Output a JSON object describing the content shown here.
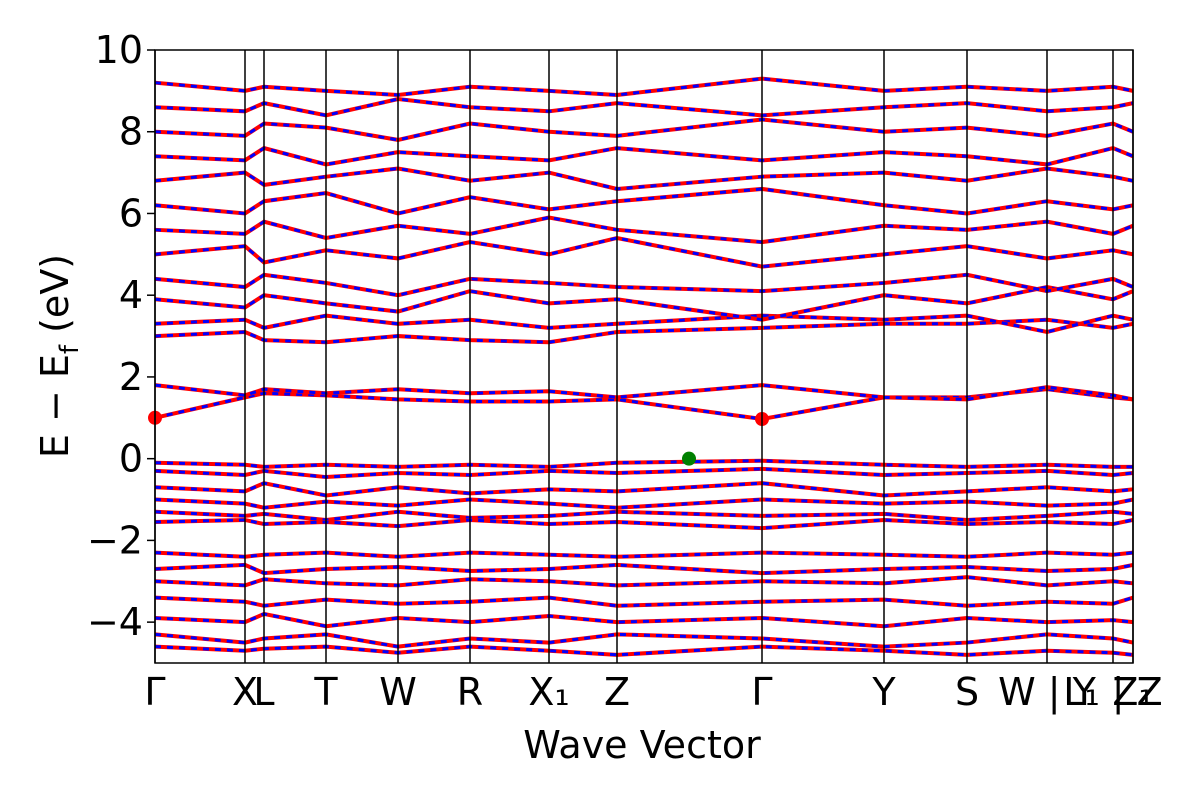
{
  "chart_data": {
    "type": "line",
    "xlabel": "Wave Vector",
    "ylabel": [
      "E − E",
      "f",
      " (eV)"
    ],
    "xlim": [
      0,
      9.78
    ],
    "ylim": [
      -5,
      10
    ],
    "yticks": [
      -4,
      -2,
      0,
      2,
      4,
      6,
      8,
      10
    ],
    "xticks": [
      {
        "value": 0,
        "label": "Γ"
      },
      {
        "value": 0.9,
        "label": "X"
      },
      {
        "value": 1.09,
        "label": "L"
      },
      {
        "value": 1.71,
        "label": "T"
      },
      {
        "value": 2.43,
        "label": "W"
      },
      {
        "value": 3.15,
        "label": "R"
      },
      {
        "value": 3.94,
        "label": "X₁"
      },
      {
        "value": 4.62,
        "label": "Z"
      },
      {
        "value": 6.07,
        "label": "Γ"
      },
      {
        "value": 7.29,
        "label": "Y"
      },
      {
        "value": 8.12,
        "label": "S"
      },
      {
        "value": 8.92,
        "label": "W | Y"
      },
      {
        "value": 9.58,
        "label": "L₁ | Z"
      },
      {
        "value": 9.78,
        "label": "Z₁"
      }
    ],
    "x": [
      0,
      0.9,
      1.09,
      1.71,
      2.43,
      3.15,
      3.94,
      4.62,
      6.07,
      7.29,
      8.12,
      8.92,
      9.58,
      9.78
    ],
    "line_color": "#ff0000",
    "dash_color": "#0000ff",
    "series": [
      {
        "values": [
          1.0,
          1.5,
          1.6,
          1.55,
          1.45,
          1.4,
          1.4,
          1.45,
          0.97,
          1.5,
          1.5,
          1.7,
          1.5,
          1.45
        ]
      },
      {
        "values": [
          1.8,
          1.55,
          1.7,
          1.6,
          1.7,
          1.6,
          1.65,
          1.5,
          1.8,
          1.5,
          1.45,
          1.75,
          1.55,
          1.45
        ]
      },
      {
        "values": [
          -0.1,
          -0.15,
          -0.2,
          -0.15,
          -0.2,
          -0.15,
          -0.2,
          -0.1,
          -0.05,
          -0.15,
          -0.2,
          -0.15,
          -0.2,
          -0.2
        ]
      },
      {
        "values": [
          -0.3,
          -0.4,
          -0.3,
          -0.45,
          -0.35,
          -0.4,
          -0.3,
          -0.35,
          -0.25,
          -0.4,
          -0.35,
          -0.3,
          -0.4,
          -0.35
        ]
      },
      {
        "values": [
          -0.7,
          -0.8,
          -0.6,
          -0.9,
          -0.7,
          -0.85,
          -0.75,
          -0.8,
          -0.6,
          -0.9,
          -0.8,
          -0.7,
          -0.8,
          -0.75
        ]
      },
      {
        "values": [
          -1.0,
          -1.1,
          -1.2,
          -1.05,
          -1.15,
          -1.0,
          -1.1,
          -1.2,
          -1.0,
          -1.1,
          -1.05,
          -1.15,
          -1.1,
          -1.0
        ]
      },
      {
        "values": [
          -1.3,
          -1.4,
          -1.35,
          -1.5,
          -1.3,
          -1.45,
          -1.4,
          -1.3,
          -1.4,
          -1.35,
          -1.5,
          -1.4,
          -1.3,
          -1.35
        ]
      },
      {
        "values": [
          -1.55,
          -1.5,
          -1.6,
          -1.55,
          -1.65,
          -1.5,
          -1.6,
          -1.55,
          -1.7,
          -1.5,
          -1.6,
          -1.55,
          -1.6,
          -1.5
        ]
      },
      {
        "values": [
          -2.3,
          -2.4,
          -2.35,
          -2.3,
          -2.4,
          -2.3,
          -2.35,
          -2.4,
          -2.3,
          -2.35,
          -2.4,
          -2.3,
          -2.35,
          -2.3
        ]
      },
      {
        "values": [
          -2.7,
          -2.6,
          -2.8,
          -2.7,
          -2.65,
          -2.75,
          -2.7,
          -2.6,
          -2.8,
          -2.7,
          -2.65,
          -2.75,
          -2.7,
          -2.6
        ]
      },
      {
        "values": [
          -3.0,
          -3.1,
          -2.95,
          -3.05,
          -3.1,
          -2.95,
          -3.0,
          -3.1,
          -3.0,
          -3.05,
          -2.9,
          -3.1,
          -3.0,
          -3.05
        ]
      },
      {
        "values": [
          -3.4,
          -3.5,
          -3.6,
          -3.45,
          -3.55,
          -3.5,
          -3.4,
          -3.6,
          -3.5,
          -3.45,
          -3.6,
          -3.5,
          -3.55,
          -3.4
        ]
      },
      {
        "values": [
          -3.9,
          -4.0,
          -3.8,
          -4.1,
          -3.9,
          -4.0,
          -3.85,
          -4.0,
          -3.9,
          -4.1,
          -3.9,
          -4.0,
          -3.95,
          -4.0
        ]
      },
      {
        "values": [
          -4.3,
          -4.5,
          -4.4,
          -4.3,
          -4.6,
          -4.4,
          -4.5,
          -4.3,
          -4.4,
          -4.6,
          -4.5,
          -4.3,
          -4.4,
          -4.5
        ]
      },
      {
        "values": [
          -4.6,
          -4.7,
          -4.65,
          -4.6,
          -4.75,
          -4.6,
          -4.7,
          -4.8,
          -4.6,
          -4.7,
          -4.8,
          -4.7,
          -4.75,
          -4.8
        ]
      },
      {
        "values": [
          3.0,
          3.1,
          2.9,
          2.85,
          3.0,
          2.9,
          2.85,
          3.1,
          3.2,
          3.3,
          3.3,
          3.4,
          3.2,
          3.3
        ]
      },
      {
        "values": [
          3.3,
          3.4,
          3.2,
          3.5,
          3.3,
          3.4,
          3.2,
          3.3,
          3.5,
          3.4,
          3.5,
          3.1,
          3.5,
          3.4
        ]
      },
      {
        "values": [
          3.9,
          3.7,
          4.0,
          3.8,
          3.6,
          4.1,
          3.8,
          3.9,
          3.4,
          4.0,
          3.8,
          4.2,
          3.9,
          4.1
        ]
      },
      {
        "values": [
          4.4,
          4.2,
          4.5,
          4.3,
          4.0,
          4.4,
          4.3,
          4.2,
          4.1,
          4.3,
          4.5,
          4.1,
          4.4,
          4.2
        ]
      },
      {
        "values": [
          5.0,
          5.2,
          4.8,
          5.1,
          4.9,
          5.3,
          5.0,
          5.4,
          4.7,
          5.0,
          5.2,
          4.9,
          5.1,
          5.0
        ]
      },
      {
        "values": [
          5.6,
          5.5,
          5.8,
          5.4,
          5.7,
          5.5,
          5.9,
          5.6,
          5.3,
          5.7,
          5.6,
          5.8,
          5.5,
          5.7
        ]
      },
      {
        "values": [
          6.2,
          6.0,
          6.3,
          6.5,
          6.0,
          6.4,
          6.1,
          6.3,
          6.6,
          6.2,
          6.0,
          6.3,
          6.1,
          6.2
        ]
      },
      {
        "values": [
          6.8,
          7.0,
          6.7,
          6.9,
          7.1,
          6.8,
          7.0,
          6.6,
          6.9,
          7.0,
          6.8,
          7.1,
          6.9,
          6.8
        ]
      },
      {
        "values": [
          7.4,
          7.3,
          7.6,
          7.2,
          7.5,
          7.4,
          7.3,
          7.6,
          7.3,
          7.5,
          7.4,
          7.2,
          7.6,
          7.4
        ]
      },
      {
        "values": [
          8.0,
          7.9,
          8.2,
          8.1,
          7.8,
          8.2,
          8.0,
          7.9,
          8.3,
          8.0,
          8.1,
          7.9,
          8.2,
          8.0
        ]
      },
      {
        "values": [
          8.6,
          8.5,
          8.7,
          8.4,
          8.8,
          8.6,
          8.5,
          8.7,
          8.4,
          8.6,
          8.7,
          8.5,
          8.6,
          8.7
        ]
      },
      {
        "values": [
          9.2,
          9.0,
          9.1,
          9.0,
          8.9,
          9.1,
          9.0,
          8.9,
          9.3,
          9.0,
          9.1,
          9.0,
          9.1,
          9.0
        ]
      }
    ],
    "points": [
      {
        "x": 0,
        "y": 1.0,
        "color": "#ff0000"
      },
      {
        "x": 6.07,
        "y": 0.97,
        "color": "#ff0000"
      },
      {
        "x": 5.34,
        "y": 0.0,
        "color": "#008000"
      }
    ]
  }
}
